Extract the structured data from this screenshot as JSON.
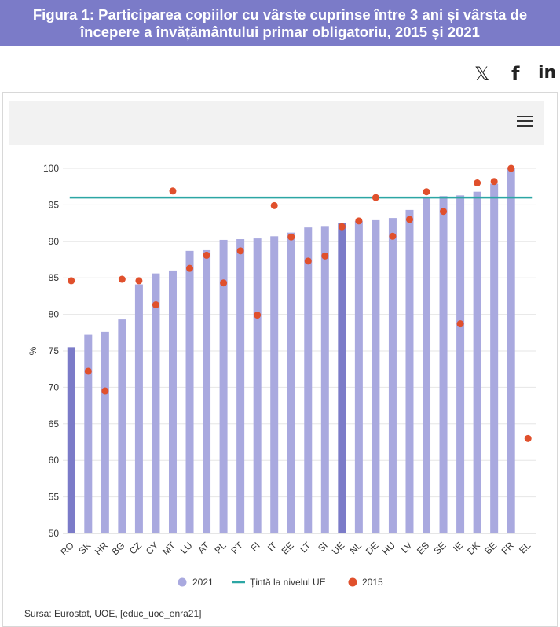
{
  "header": {
    "title_line1": "Figura 1: Participarea copiilor cu vârste cuprinse între 3 ani și vârsta de",
    "title_line2": "începere a învățământului primar obligatoriu, 2015 și 2021"
  },
  "share": {
    "x": "𝕏",
    "facebook": "f",
    "linkedin": "in"
  },
  "colors": {
    "header_bg": "#7b7bc8",
    "bar_2021": "#a9a9df",
    "bar_highlight": "#7b7bc8",
    "target_line": "#2ca6a4",
    "dot_2015": "#e0502c"
  },
  "chart_data": {
    "type": "bar",
    "categories": [
      "RO",
      "SK",
      "HR",
      "BG",
      "CZ",
      "CY",
      "MT",
      "LU",
      "AT",
      "PL",
      "PT",
      "FI",
      "IT",
      "EE",
      "LT",
      "SI",
      "UE",
      "NL",
      "DE",
      "HU",
      "LV",
      "ES",
      "SE",
      "IE",
      "DK",
      "BE",
      "FR",
      "EL"
    ],
    "highlighted": [
      "RO",
      "UE"
    ],
    "series": [
      {
        "name": "2021",
        "type": "bar",
        "values": [
          75.5,
          77.2,
          77.6,
          79.3,
          84.1,
          85.6,
          86.0,
          88.7,
          88.8,
          90.2,
          90.3,
          90.4,
          90.7,
          91.2,
          91.9,
          92.1,
          92.5,
          92.8,
          92.9,
          93.2,
          94.3,
          96.1,
          96.2,
          96.3,
          96.8,
          97.9,
          100.0,
          null
        ]
      },
      {
        "name": "Țintă la nivelul UE",
        "type": "line",
        "value": 96
      },
      {
        "name": "2015",
        "type": "scatter",
        "values": [
          84.6,
          72.2,
          69.5,
          84.8,
          84.6,
          81.3,
          96.9,
          86.3,
          88.1,
          84.3,
          88.7,
          79.9,
          94.9,
          90.6,
          87.3,
          88.0,
          92.0,
          92.8,
          96.0,
          90.7,
          93.0,
          96.8,
          94.1,
          78.7,
          98.0,
          98.2,
          100.0,
          63.0
        ]
      }
    ],
    "ylabel": "%",
    "ylim": [
      50,
      100
    ],
    "yticks": [
      50,
      55,
      60,
      65,
      70,
      75,
      80,
      85,
      90,
      95,
      100
    ],
    "legend": [
      "2021",
      "Țintă la nivelul UE",
      "2015"
    ],
    "legend_position": "bottom-center"
  },
  "footer": {
    "source": "Sursa: Eurostat, UOE, [educ_uoe_enra21]"
  }
}
